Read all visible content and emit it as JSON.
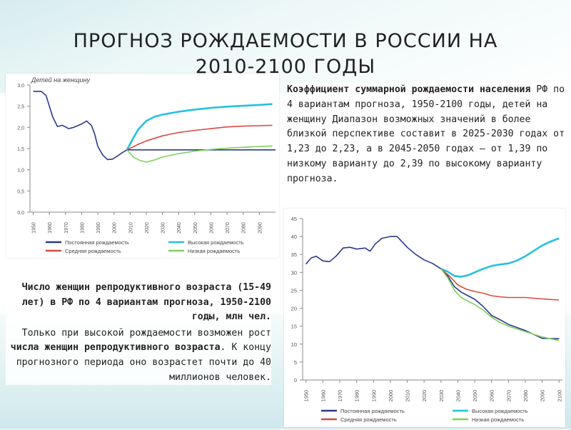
{
  "slide": {
    "title": "Прогноз рождаемости в России на 2010-2100 годы"
  },
  "text1": {
    "bold": "Коэффициент суммарной рождаемости населения",
    "rest": " РФ по 4 вариантам прогноза, 1950-2100 годы, детей на женщину Диапазон возможных значений в более близкой перспективе составит в 2025-2030 годах от 1,23 до 2,23, а в 2045-2050 годах – от 1,39 по низкому варианту до 2,39 по высокому варианту прогноза."
  },
  "text2": {
    "p1": "Число женщин репродуктивного возраста (15-49 лет) в РФ по 4 вариантам прогноза, 1950-2100 годы, млн чел.",
    "p2_a": "Только при высокой рождаемости возможен рост ",
    "p2_b": "числа женщин репродуктивного возраста",
    "p2_c": ". К концу прогнозного периода оно возрастет почти до 40 миллионов человек."
  },
  "chart_data": [
    {
      "type": "line",
      "title": "Детей на женщину",
      "xlabel": "",
      "ylabel": "",
      "x_ticks": [
        "1950",
        "1960",
        "1970",
        "1980",
        "1990",
        "2000",
        "2010",
        "2020",
        "2030",
        "2040",
        "2050",
        "2060",
        "2070",
        "2080",
        "2090"
      ],
      "y_ticks": [
        "0,0",
        "0,5",
        "1,0",
        "1,5",
        "2,0",
        "2,5",
        "3,0"
      ],
      "xlim": [
        1948,
        2100
      ],
      "ylim": [
        0,
        3.0
      ],
      "grid": false,
      "legend_position": "bottom",
      "series": [
        {
          "name": "Постоянная рождаемость",
          "color": "#2b3a8c",
          "x": [
            1950,
            1955,
            1958,
            1962,
            1965,
            1968,
            1972,
            1975,
            1980,
            1983,
            1986,
            1988,
            1990,
            1993,
            1996,
            1999,
            2002,
            2005,
            2008,
            2010,
            2100
          ],
          "y": [
            2.85,
            2.85,
            2.75,
            2.25,
            2.02,
            2.05,
            1.97,
            2.0,
            2.08,
            2.15,
            2.05,
            1.85,
            1.55,
            1.35,
            1.24,
            1.25,
            1.32,
            1.4,
            1.47,
            1.47,
            1.47
          ]
        },
        {
          "name": "Высокая рождаемость",
          "color": "#24c1de",
          "x": [
            2008,
            2012,
            2015,
            2020,
            2025,
            2030,
            2040,
            2050,
            2060,
            2070,
            2080,
            2090,
            2098
          ],
          "y": [
            1.47,
            1.75,
            1.95,
            2.15,
            2.25,
            2.3,
            2.37,
            2.42,
            2.46,
            2.49,
            2.51,
            2.53,
            2.55
          ]
        },
        {
          "name": "Средняя рождаемость",
          "color": "#d94a3e",
          "x": [
            2008,
            2015,
            2020,
            2030,
            2040,
            2050,
            2060,
            2070,
            2080,
            2090,
            2098
          ],
          "y": [
            1.47,
            1.6,
            1.68,
            1.8,
            1.88,
            1.93,
            1.97,
            2.01,
            2.03,
            2.04,
            2.05
          ]
        },
        {
          "name": "Низкая рождаемость",
          "color": "#7ed15a",
          "x": [
            2008,
            2012,
            2016,
            2020,
            2025,
            2030,
            2040,
            2050,
            2060,
            2070,
            2080,
            2090,
            2098
          ],
          "y": [
            1.47,
            1.3,
            1.22,
            1.18,
            1.23,
            1.3,
            1.38,
            1.44,
            1.48,
            1.51,
            1.53,
            1.55,
            1.56
          ]
        }
      ]
    },
    {
      "type": "line",
      "title": "",
      "xlabel": "",
      "ylabel": "",
      "x_ticks": [
        "1950",
        "1960",
        "1970",
        "1980",
        "1990",
        "2000",
        "2010",
        "2020",
        "2030",
        "2040",
        "2050",
        "2060",
        "2070",
        "2080",
        "2090",
        "2100"
      ],
      "y_ticks": [
        "0",
        "5",
        "10",
        "15",
        "20",
        "25",
        "30",
        "35",
        "40",
        "45"
      ],
      "xlim": [
        1948,
        2102
      ],
      "ylim": [
        0,
        45
      ],
      "grid": false,
      "legend_position": "bottom",
      "series": [
        {
          "name": "Постоянная рождаемость",
          "color": "#2b3a8c",
          "x": [
            1950,
            1953,
            1956,
            1960,
            1964,
            1968,
            1972,
            1976,
            1980,
            1985,
            1988,
            1991,
            1995,
            2000,
            2004,
            2010,
            2015,
            2020,
            2025,
            2030,
            2034,
            2038,
            2042,
            2046,
            2050,
            2055,
            2060,
            2065,
            2070,
            2080,
            2090,
            2100
          ],
          "y": [
            32.3,
            34.0,
            34.5,
            33.2,
            33.0,
            34.6,
            36.8,
            37.0,
            36.5,
            36.8,
            35.9,
            37.9,
            39.5,
            40.0,
            40.0,
            37.0,
            35.0,
            33.5,
            32.5,
            31.0,
            29.0,
            26.0,
            24.5,
            23.5,
            22.5,
            20.5,
            18.0,
            16.8,
            15.5,
            13.8,
            11.6,
            11.5
          ]
        },
        {
          "name": "Высокая рождаемость",
          "color": "#24c1de",
          "x": [
            2030,
            2034,
            2038,
            2042,
            2046,
            2050,
            2055,
            2060,
            2065,
            2070,
            2075,
            2080,
            2085,
            2090,
            2095,
            2100
          ],
          "y": [
            31.0,
            30.2,
            29.0,
            28.8,
            29.2,
            30.0,
            31.0,
            31.8,
            32.2,
            32.5,
            33.3,
            34.5,
            36.0,
            37.5,
            38.6,
            39.5
          ]
        },
        {
          "name": "Средняя рождаемость",
          "color": "#d94a3e",
          "x": [
            2030,
            2035,
            2040,
            2045,
            2050,
            2055,
            2060,
            2065,
            2070,
            2080,
            2090,
            2100
          ],
          "y": [
            31.0,
            29.0,
            26.5,
            25.3,
            24.7,
            24.2,
            23.5,
            23.2,
            23.0,
            23.0,
            22.6,
            22.3
          ]
        },
        {
          "name": "Низкая рождаемость",
          "color": "#7ed15a",
          "x": [
            2030,
            2034,
            2038,
            2042,
            2046,
            2050,
            2055,
            2060,
            2065,
            2070,
            2080,
            2090,
            2100
          ],
          "y": [
            31.0,
            28.5,
            25.0,
            23.0,
            22.0,
            21.0,
            19.5,
            17.5,
            16.0,
            15.0,
            13.5,
            12.0,
            11.0
          ]
        }
      ]
    }
  ]
}
